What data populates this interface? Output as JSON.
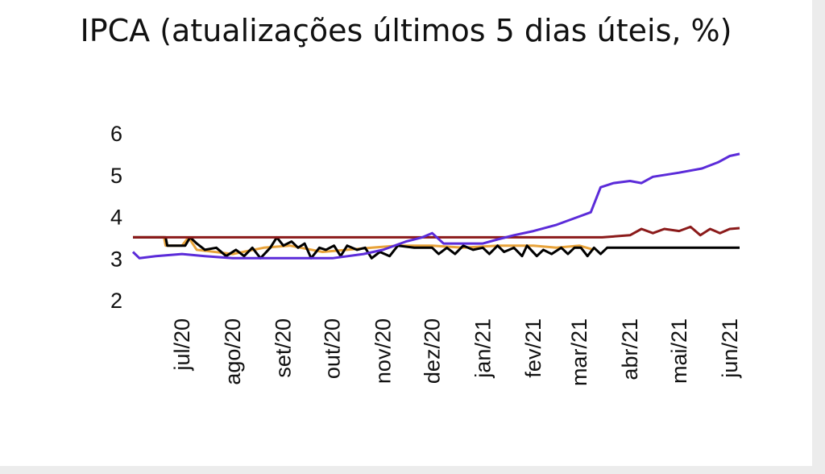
{
  "chart_data": {
    "type": "line",
    "title": "IPCA (atualizações últimos 5 dias úteis, %)",
    "xlabel": "",
    "ylabel": "",
    "ylim": [
      2,
      6
    ],
    "yticks": [
      "2",
      "3",
      "4",
      "5",
      "6"
    ],
    "x_start": "2020-06-01",
    "x_end": "2021-06-08",
    "xticks": [
      {
        "date": "2020-07-01",
        "label": "jul/20"
      },
      {
        "date": "2020-08-01",
        "label": "ago/20"
      },
      {
        "date": "2020-09-01",
        "label": "set/20"
      },
      {
        "date": "2020-10-01",
        "label": "out/20"
      },
      {
        "date": "2020-11-01",
        "label": "nov/20"
      },
      {
        "date": "2020-12-01",
        "label": "dez/20"
      },
      {
        "date": "2021-01-01",
        "label": "jan/21"
      },
      {
        "date": "2021-02-01",
        "label": "fev/21"
      },
      {
        "date": "2021-03-01",
        "label": "mar/21"
      },
      {
        "date": "2021-04-01",
        "label": "abr/21"
      },
      {
        "date": "2021-05-01",
        "label": "mai/21"
      },
      {
        "date": "2021-06-01",
        "label": "jun/21"
      }
    ],
    "grid": false,
    "series": [
      {
        "color": "#e8a33a",
        "points": [
          [
            "2020-06-01",
            3.5
          ],
          [
            "2020-06-20",
            3.5
          ],
          [
            "2020-06-21",
            3.3
          ],
          [
            "2020-07-01",
            3.3
          ],
          [
            "2020-07-05",
            3.5
          ],
          [
            "2020-07-10",
            3.2
          ],
          [
            "2020-08-01",
            3.1
          ],
          [
            "2020-08-20",
            3.25
          ],
          [
            "2020-09-05",
            3.3
          ],
          [
            "2020-09-25",
            3.15
          ],
          [
            "2020-10-10",
            3.2
          ],
          [
            "2020-10-25",
            3.25
          ],
          [
            "2020-11-10",
            3.3
          ],
          [
            "2020-12-01",
            3.3
          ],
          [
            "2020-12-20",
            3.25
          ],
          [
            "2021-01-10",
            3.3
          ],
          [
            "2021-02-01",
            3.3
          ],
          [
            "2021-02-15",
            3.25
          ],
          [
            "2021-03-01",
            3.3
          ],
          [
            "2021-03-10",
            3.2
          ]
        ]
      },
      {
        "color": "#000000",
        "points": [
          [
            "2020-06-01",
            3.5
          ],
          [
            "2020-06-21",
            3.5
          ],
          [
            "2020-06-22",
            3.3
          ],
          [
            "2020-07-03",
            3.3
          ],
          [
            "2020-07-06",
            3.5
          ],
          [
            "2020-07-10",
            3.35
          ],
          [
            "2020-07-15",
            3.2
          ],
          [
            "2020-07-22",
            3.25
          ],
          [
            "2020-07-28",
            3.05
          ],
          [
            "2020-08-03",
            3.2
          ],
          [
            "2020-08-08",
            3.05
          ],
          [
            "2020-08-13",
            3.25
          ],
          [
            "2020-08-18",
            3.0
          ],
          [
            "2020-08-24",
            3.25
          ],
          [
            "2020-08-28",
            3.5
          ],
          [
            "2020-09-01",
            3.3
          ],
          [
            "2020-09-06",
            3.4
          ],
          [
            "2020-09-10",
            3.25
          ],
          [
            "2020-09-14",
            3.35
          ],
          [
            "2020-09-18",
            3.0
          ],
          [
            "2020-09-23",
            3.25
          ],
          [
            "2020-09-27",
            3.2
          ],
          [
            "2020-10-02",
            3.3
          ],
          [
            "2020-10-06",
            3.05
          ],
          [
            "2020-10-10",
            3.3
          ],
          [
            "2020-10-16",
            3.2
          ],
          [
            "2020-10-21",
            3.25
          ],
          [
            "2020-10-25",
            3.0
          ],
          [
            "2020-10-30",
            3.15
          ],
          [
            "2020-11-05",
            3.05
          ],
          [
            "2020-11-10",
            3.3
          ],
          [
            "2020-11-20",
            3.25
          ],
          [
            "2020-12-01",
            3.25
          ],
          [
            "2020-12-05",
            3.1
          ],
          [
            "2020-12-10",
            3.25
          ],
          [
            "2020-12-15",
            3.1
          ],
          [
            "2020-12-20",
            3.3
          ],
          [
            "2020-12-26",
            3.2
          ],
          [
            "2021-01-01",
            3.25
          ],
          [
            "2021-01-05",
            3.1
          ],
          [
            "2021-01-10",
            3.3
          ],
          [
            "2021-01-14",
            3.15
          ],
          [
            "2021-01-20",
            3.25
          ],
          [
            "2021-01-25",
            3.05
          ],
          [
            "2021-01-28",
            3.3
          ],
          [
            "2021-02-03",
            3.05
          ],
          [
            "2021-02-07",
            3.2
          ],
          [
            "2021-02-12",
            3.1
          ],
          [
            "2021-02-18",
            3.25
          ],
          [
            "2021-02-22",
            3.1
          ],
          [
            "2021-02-26",
            3.25
          ],
          [
            "2021-03-02",
            3.25
          ],
          [
            "2021-03-06",
            3.05
          ],
          [
            "2021-03-10",
            3.25
          ],
          [
            "2021-03-14",
            3.1
          ],
          [
            "2021-03-18",
            3.25
          ],
          [
            "2021-03-22",
            3.25
          ],
          [
            "2021-06-07",
            3.25
          ]
        ]
      },
      {
        "color": "#8b1a1a",
        "points": [
          [
            "2020-06-01",
            3.5
          ],
          [
            "2020-11-01",
            3.5
          ],
          [
            "2020-12-01",
            3.5
          ],
          [
            "2021-01-01",
            3.5
          ],
          [
            "2021-02-01",
            3.5
          ],
          [
            "2021-03-01",
            3.5
          ],
          [
            "2021-03-15",
            3.5
          ],
          [
            "2021-04-01",
            3.55
          ],
          [
            "2021-04-08",
            3.7
          ],
          [
            "2021-04-15",
            3.6
          ],
          [
            "2021-04-22",
            3.7
          ],
          [
            "2021-05-01",
            3.65
          ],
          [
            "2021-05-08",
            3.75
          ],
          [
            "2021-05-14",
            3.55
          ],
          [
            "2021-05-20",
            3.7
          ],
          [
            "2021-05-26",
            3.6
          ],
          [
            "2021-06-01",
            3.7
          ],
          [
            "2021-06-07",
            3.72
          ]
        ]
      },
      {
        "color": "#5b2bd9",
        "points": [
          [
            "2020-06-01",
            3.15
          ],
          [
            "2020-06-05",
            3.0
          ],
          [
            "2020-06-15",
            3.05
          ],
          [
            "2020-07-01",
            3.1
          ],
          [
            "2020-07-15",
            3.05
          ],
          [
            "2020-08-01",
            3.0
          ],
          [
            "2020-08-20",
            3.0
          ],
          [
            "2020-09-10",
            3.0
          ],
          [
            "2020-10-01",
            3.0
          ],
          [
            "2020-10-20",
            3.1
          ],
          [
            "2020-11-01",
            3.2
          ],
          [
            "2020-11-15",
            3.4
          ],
          [
            "2020-11-25",
            3.5
          ],
          [
            "2020-12-01",
            3.6
          ],
          [
            "2020-12-08",
            3.35
          ],
          [
            "2020-12-20",
            3.35
          ],
          [
            "2021-01-01",
            3.35
          ],
          [
            "2021-01-10",
            3.45
          ],
          [
            "2021-01-20",
            3.55
          ],
          [
            "2021-02-01",
            3.65
          ],
          [
            "2021-02-15",
            3.8
          ],
          [
            "2021-03-01",
            4.0
          ],
          [
            "2021-03-08",
            4.1
          ],
          [
            "2021-03-14",
            4.7
          ],
          [
            "2021-03-22",
            4.8
          ],
          [
            "2021-04-01",
            4.85
          ],
          [
            "2021-04-08",
            4.8
          ],
          [
            "2021-04-15",
            4.95
          ],
          [
            "2021-05-01",
            5.05
          ],
          [
            "2021-05-15",
            5.15
          ],
          [
            "2021-05-25",
            5.3
          ],
          [
            "2021-06-01",
            5.45
          ],
          [
            "2021-06-07",
            5.5
          ]
        ]
      }
    ]
  }
}
